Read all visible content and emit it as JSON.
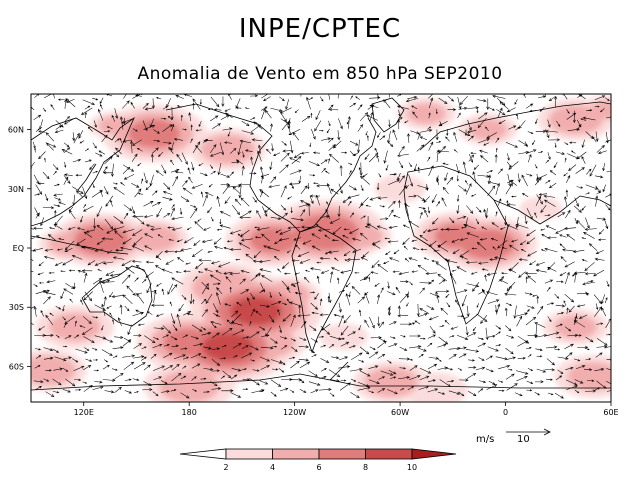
{
  "header": {
    "title": "INPE/CPTEC",
    "subtitle": "Anomalia de Vento em 850 hPa SEP2010"
  },
  "map": {
    "lon_range": [
      90,
      420
    ],
    "lat_range": [
      -78,
      78
    ],
    "lon_ticks": [
      {
        "lon": 120,
        "label": "120E"
      },
      {
        "lon": 180,
        "label": "180"
      },
      {
        "lon": 240,
        "label": "120W"
      },
      {
        "lon": 300,
        "label": "60W"
      },
      {
        "lon": 360,
        "label": "0"
      },
      {
        "lon": 420,
        "label": "60E"
      }
    ],
    "lat_ticks": [
      {
        "lat": 60,
        "label": "60N"
      },
      {
        "lat": 30,
        "label": "30N"
      },
      {
        "lat": 0,
        "label": "EQ"
      },
      {
        "lat": -30,
        "label": "30S"
      },
      {
        "lat": -60,
        "label": "60S"
      }
    ],
    "shading_colors": [
      "#ffffff",
      "#fbdcdc",
      "#f2aeae",
      "#e07c7c",
      "#c84a4a",
      "#a81e1e"
    ],
    "hotspots": [
      {
        "lon": 160,
        "lat": 58,
        "mag": 7,
        "r": 12
      },
      {
        "lon": 138,
        "lat": 62,
        "mag": 5,
        "r": 8
      },
      {
        "lon": 202,
        "lat": 50,
        "mag": 6,
        "r": 10
      },
      {
        "lon": 315,
        "lat": 68,
        "mag": 5,
        "r": 9
      },
      {
        "lon": 350,
        "lat": 60,
        "mag": 5,
        "r": 9
      },
      {
        "lon": 400,
        "lat": 65,
        "mag": 6,
        "r": 10
      },
      {
        "lon": 418,
        "lat": 70,
        "mag": 5,
        "r": 8
      },
      {
        "lon": 130,
        "lat": 4,
        "mag": 8,
        "r": 10
      },
      {
        "lon": 112,
        "lat": 2,
        "mag": 6,
        "r": 8
      },
      {
        "lon": 160,
        "lat": 5,
        "mag": 6,
        "r": 9
      },
      {
        "lon": 228,
        "lat": 4,
        "mag": 7,
        "r": 11
      },
      {
        "lon": 258,
        "lat": 8,
        "mag": 8,
        "r": 12
      },
      {
        "lon": 278,
        "lat": 6,
        "mag": 6,
        "r": 8
      },
      {
        "lon": 332,
        "lat": 6,
        "mag": 7,
        "r": 10
      },
      {
        "lon": 350,
        "lat": 2,
        "mag": 8,
        "r": 10
      },
      {
        "lon": 200,
        "lat": -20,
        "mag": 6,
        "r": 12
      },
      {
        "lon": 218,
        "lat": -32,
        "mag": 9,
        "r": 12
      },
      {
        "lon": 235,
        "lat": -24,
        "mag": 6,
        "r": 9
      },
      {
        "lon": 180,
        "lat": -48,
        "mag": 7,
        "r": 12
      },
      {
        "lon": 202,
        "lat": -50,
        "mag": 9,
        "r": 12
      },
      {
        "lon": 225,
        "lat": -48,
        "mag": 6,
        "r": 10
      },
      {
        "lon": 115,
        "lat": -40,
        "mag": 5,
        "r": 12
      },
      {
        "lon": 100,
        "lat": -62,
        "mag": 6,
        "r": 10
      },
      {
        "lon": 180,
        "lat": -70,
        "mag": 5,
        "r": 14
      },
      {
        "lon": 295,
        "lat": -68,
        "mag": 6,
        "r": 10
      },
      {
        "lon": 320,
        "lat": -72,
        "mag": 4,
        "r": 12
      },
      {
        "lon": 400,
        "lat": -40,
        "mag": 5,
        "r": 10
      },
      {
        "lon": 410,
        "lat": -65,
        "mag": 5,
        "r": 12
      },
      {
        "lon": 268,
        "lat": -45,
        "mag": 4,
        "r": 9
      },
      {
        "lon": 380,
        "lat": 20,
        "mag": 3,
        "r": 10
      },
      {
        "lon": 300,
        "lat": 30,
        "mag": 3,
        "r": 12
      }
    ]
  },
  "colorbar": {
    "labels": [
      "2",
      "4",
      "6",
      "8",
      "10"
    ],
    "colors": [
      "#ffffff",
      "#fbdcdc",
      "#f2aeae",
      "#e07c7c",
      "#c84a4a",
      "#a81e1e"
    ]
  },
  "vector_key": {
    "unit": "m/s",
    "value": "10"
  }
}
